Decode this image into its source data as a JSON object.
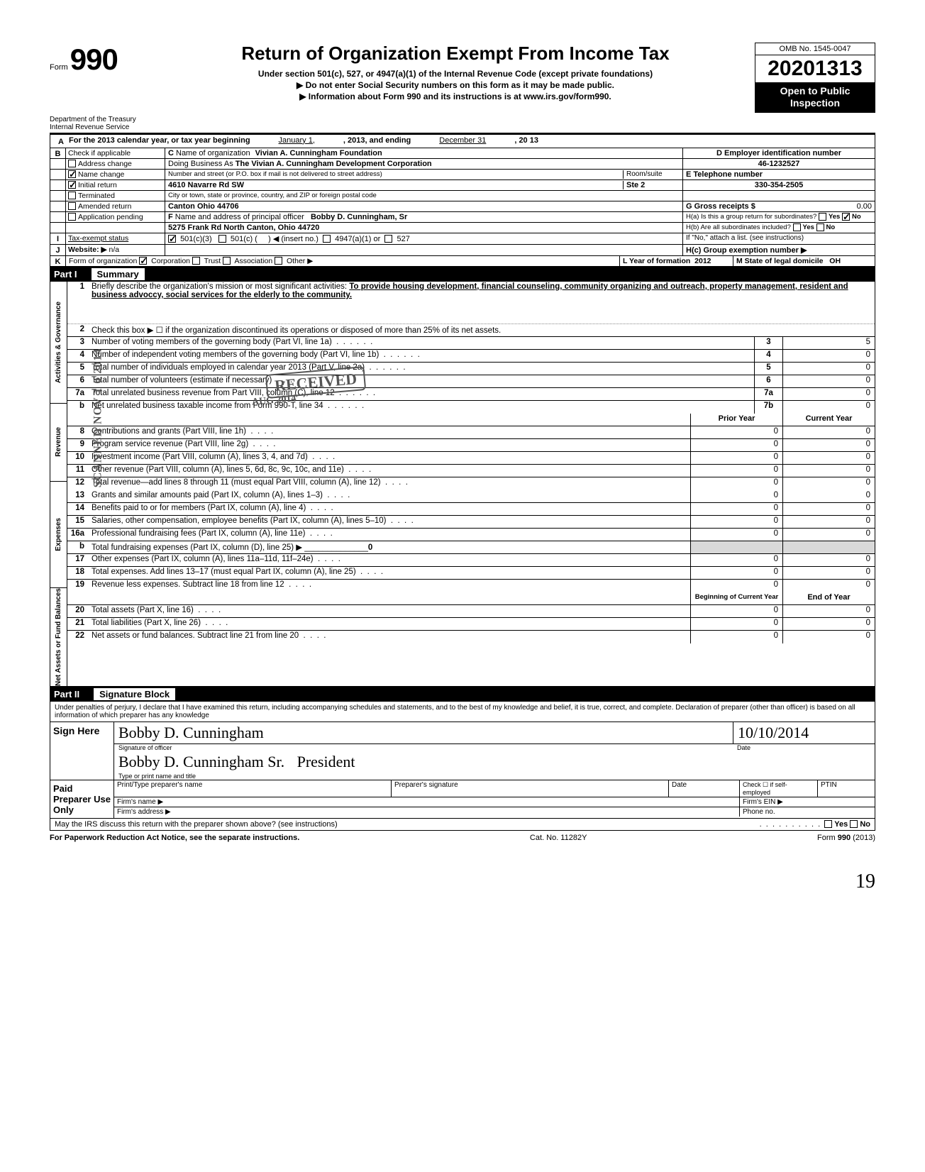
{
  "form": {
    "number_prefix": "Form",
    "number": "990",
    "title": "Return of Organization Exempt From Income Tax",
    "subtitle": "Under section 501(c), 527, or 4947(a)(1) of the Internal Revenue Code (except private foundations)",
    "ssn_notice": "▶ Do not enter Social Security numbers on this form as it may be made public.",
    "info_notice": "▶ Information about Form 990 and its instructions is at www.irs.gov/form990.",
    "omb": "OMB No. 1545-0047",
    "year": "2013",
    "open": "Open to Public Inspection",
    "dept": "Department of the Treasury",
    "irs": "Internal Revenue Service"
  },
  "headerA": {
    "label": "A",
    "text": "For the 2013 calendar year, or tax year beginning",
    "begin": "January 1,",
    "mid": ", 2013, and ending",
    "end_month": "December 31",
    "end_year": ", 20  13"
  },
  "sectionB": {
    "label": "B",
    "check_if": "Check if applicable",
    "items": [
      {
        "label": "Address change",
        "checked": false
      },
      {
        "label": "Name change",
        "checked": true
      },
      {
        "label": "Initial return",
        "checked": true
      },
      {
        "label": "Terminated",
        "checked": false
      },
      {
        "label": "Amended return",
        "checked": false
      },
      {
        "label": "Application pending",
        "checked": false
      }
    ]
  },
  "sectionC": {
    "label": "C",
    "name_label": "Name of organization",
    "name": "Vivian A. Cunningham Foundation",
    "dba_label": "Doing Business As",
    "dba": "The Vivian A. Cunningham Development Corporation",
    "street_label": "Number and street (or P.O. box if mail is not delivered to street address)",
    "street": "4610 Navarre Rd SW",
    "room_label": "Room/suite",
    "room": "Ste 2",
    "city_label": "City or town, state or province, country, and ZIP or foreign postal code",
    "city": "Canton Ohio  44706"
  },
  "sectionD": {
    "label": "D Employer identification number",
    "value": "46-1232527"
  },
  "sectionE": {
    "label": "E Telephone number",
    "value": "330-354-2505"
  },
  "sectionF": {
    "label": "F",
    "text": "Name and address of principal officer",
    "name": "Bobby D. Cunningham, Sr",
    "addr": "5275 Frank Rd North Canton, Ohio  44720"
  },
  "sectionG": {
    "label": "G Gross receipts $",
    "value": "0.00"
  },
  "sectionH": {
    "ha": "H(a) Is this a group return for subordinates?",
    "hb": "H(b) Are all subordinates included?",
    "hc": "H(c) Group exemption number ▶",
    "yes": "Yes",
    "no": "No",
    "ha_no_checked": true,
    "attach": "If \"No,\" attach a list. (see instructions)"
  },
  "sectionI": {
    "label": "I",
    "text": "Tax-exempt status",
    "c3": "501(c)(3)",
    "c": "501(c) (",
    "insert": ") ◀ (insert no.)",
    "a1": "4947(a)(1) or",
    "s527": "527"
  },
  "sectionJ": {
    "label": "J",
    "text": "Website: ▶",
    "value": "n/a"
  },
  "sectionK": {
    "label": "K",
    "text": "Form of organization",
    "corp": "Corporation",
    "trust": "Trust",
    "assoc": "Association",
    "other": "Other ▶",
    "l": "L Year of formation",
    "l_val": "2012",
    "m": "M State of legal domicile",
    "m_val": "OH"
  },
  "partI": {
    "num": "Part I",
    "title": "Summary",
    "side_labels": {
      "ag": "Activities & Governance",
      "rev": "Revenue",
      "exp": "Expenses",
      "nab": "Net Assets or Fund Balances"
    },
    "line1": {
      "num": "1",
      "text": "Briefly describe the organization's mission or most significant activities:",
      "val": "To provide housing development, financial counseling, community organizing and outreach, property management, resident and business advoccy, social services for the elderly to the community."
    },
    "line2": {
      "num": "2",
      "text": "Check this box ▶ ☐ if the organization discontinued its operations or disposed of more than 25% of its net assets."
    },
    "boxed_lines": [
      {
        "num": "3",
        "text": "Number of voting members of the governing body (Part VI, line 1a)",
        "box": "3",
        "val": "5"
      },
      {
        "num": "4",
        "text": "Number of independent voting members of the governing body (Part VI, line 1b)",
        "box": "4",
        "val": "0"
      },
      {
        "num": "5",
        "text": "Total number of individuals employed in calendar year 2013 (Part V, line 2a)",
        "box": "5",
        "val": "0"
      },
      {
        "num": "6",
        "text": "Total number of volunteers (estimate if necessary)",
        "box": "6",
        "val": "0"
      },
      {
        "num": "7a",
        "text": "Total unrelated business revenue from Part VIII, column (C), line 12",
        "box": "7a",
        "val": "0"
      },
      {
        "num": "b",
        "text": "Net unrelated business taxable income from Form 990-T, line 34",
        "box": "7b",
        "val": "0"
      }
    ],
    "col_headers": {
      "prior": "Prior Year",
      "current": "Current Year",
      "boy": "Beginning of Current Year",
      "eoy": "End of Year"
    },
    "two_col_lines_rev": [
      {
        "num": "8",
        "text": "Contributions and grants (Part VIII, line 1h)",
        "prior": "0",
        "current": "0"
      },
      {
        "num": "9",
        "text": "Program service revenue (Part VIII, line 2g)",
        "prior": "0",
        "current": "0"
      },
      {
        "num": "10",
        "text": "Investment income (Part VIII, column (A), lines 3, 4, and 7d)",
        "prior": "0",
        "current": "0"
      },
      {
        "num": "11",
        "text": "Other revenue (Part VIII, column (A), lines 5, 6d, 8c, 9c, 10c, and 11e)",
        "prior": "0",
        "current": "0"
      },
      {
        "num": "12",
        "text": "Total revenue—add lines 8 through 11 (must equal Part VIII, column (A), line 12)",
        "prior": "0",
        "current": "0"
      }
    ],
    "two_col_lines_exp": [
      {
        "num": "13",
        "text": "Grants and similar amounts paid (Part IX, column (A), lines 1–3)",
        "prior": "0",
        "current": "0"
      },
      {
        "num": "14",
        "text": "Benefits paid to or for members (Part IX, column (A), line 4)",
        "prior": "0",
        "current": "0"
      },
      {
        "num": "15",
        "text": "Salaries, other compensation, employee benefits (Part IX, column (A), lines 5–10)",
        "prior": "0",
        "current": "0"
      },
      {
        "num": "16a",
        "text": "Professional fundraising fees (Part IX, column (A), line 11e)",
        "prior": "0",
        "current": "0"
      },
      {
        "num": "b",
        "text": "Total fundraising expenses (Part IX, column (D), line 25) ▶",
        "prior": "",
        "current": "",
        "inline": "0"
      },
      {
        "num": "17",
        "text": "Other expenses (Part IX, column (A), lines 11a–11d, 11f–24e)",
        "prior": "0",
        "current": "0"
      },
      {
        "num": "18",
        "text": "Total expenses. Add lines 13–17 (must equal Part IX, column (A), line 25)",
        "prior": "0",
        "current": "0"
      },
      {
        "num": "19",
        "text": "Revenue less expenses. Subtract line 18 from line 12",
        "prior": "0",
        "current": "0"
      }
    ],
    "two_col_lines_na": [
      {
        "num": "20",
        "text": "Total assets (Part X, line 16)",
        "prior": "0",
        "current": "0"
      },
      {
        "num": "21",
        "text": "Total liabilities (Part X, line 26)",
        "prior": "0",
        "current": "0"
      },
      {
        "num": "22",
        "text": "Net assets or fund balances. Subtract line 21 from line 20",
        "prior": "0",
        "current": "0"
      }
    ]
  },
  "partII": {
    "num": "Part II",
    "title": "Signature Block",
    "perjury": "Under penalties of perjury, I declare that I have examined this return, including accompanying schedules and statements, and to the best of my knowledge and belief, it is true, correct, and complete. Declaration of preparer (other than officer) is based on all information of which preparer has any knowledge",
    "sign_here": "Sign Here",
    "sig_officer": "Signature of officer",
    "date_label": "Date",
    "date_val": "10/10/2014",
    "type_name": "Type or print name and title",
    "name_hand": "Bobby D. Cunningham Sr.",
    "title_hand": "President",
    "paid": "Paid Preparer Use Only",
    "prep_name": "Print/Type preparer's name",
    "prep_sig": "Preparer's signature",
    "check_if": "Check ☐ if self-employed",
    "ptin": "PTIN",
    "firm_name": "Firm's name    ▶",
    "firm_ein": "Firm's EIN ▶",
    "firm_addr": "Firm's address ▶",
    "phone": "Phone no.",
    "may_irs": "May the IRS discuss this return with the preparer shown above? (see instructions)",
    "yes": "Yes",
    "no": "No"
  },
  "footer": {
    "left": "For Paperwork Reduction Act Notice, see the separate instructions.",
    "mid": "Cat. No. 11282Y",
    "right": "Form 990 (2013)"
  },
  "stamps": {
    "received": "RECEIVED",
    "scanned": "SCANNED NOV 1 0 2014",
    "aug": "AUG 2014",
    "page": "19"
  }
}
